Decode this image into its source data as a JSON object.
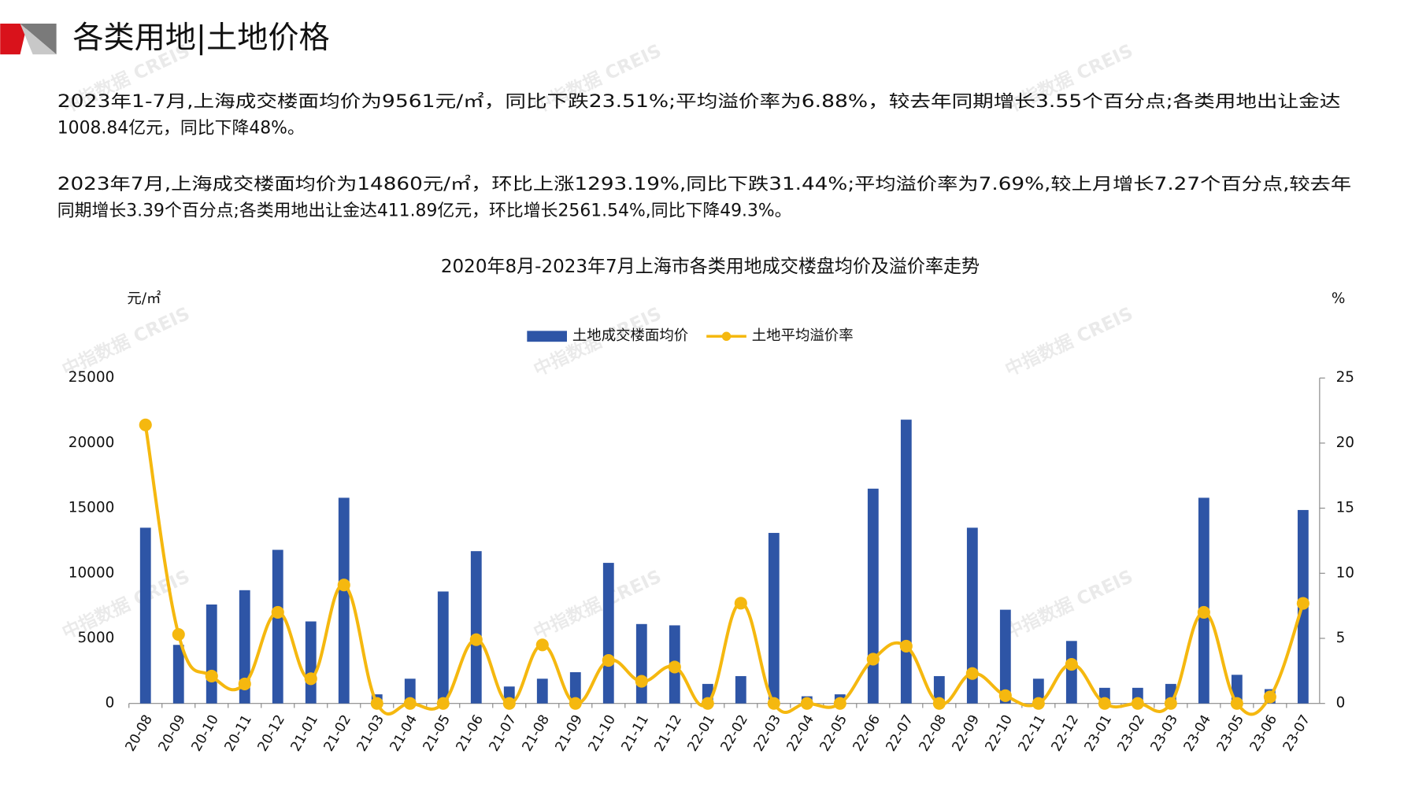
{
  "header": {
    "title": "各类用地|土地价格"
  },
  "paragraphs": [
    [
      "2023年1-7月,上海成交楼面均价为9561元/㎡，同比下跌23.51%;平均溢价率为6.88%，较去年同期增长3.55个百分点;各类用地出让金达",
      "1008.84亿元，同比下降48%。"
    ],
    [
      "2023年7月,上海成交楼面均价为14860元/㎡，环比上涨1293.19%,同比下跌31.44%;平均溢价率为7.69%,较上月增长7.27个百分点,较去年",
      "同期增长3.39个百分点;各类用地出让金达411.89亿元，环比增长2561.54%,同比下降49.3%。"
    ]
  ],
  "watermark": "中指数据 CREIS",
  "chart_data": {
    "type": "bar-line",
    "title": "2020年8月-2023年7月上海市各类用地成交楼盘均价及溢价率走势",
    "y_label": "元/㎡",
    "y2_label": "%",
    "categories": [
      "20-08",
      "20-09",
      "20-10",
      "20-11",
      "20-12",
      "21-01",
      "21-02",
      "21-03",
      "21-04",
      "21-05",
      "21-06",
      "21-07",
      "21-08",
      "21-09",
      "21-10",
      "21-11",
      "21-12",
      "22-01",
      "22-02",
      "22-03",
      "22-04",
      "22-05",
      "22-06",
      "22-07",
      "22-08",
      "22-09",
      "22-10",
      "22-11",
      "22-12",
      "23-01",
      "23-02",
      "23-03",
      "23-04",
      "23-05",
      "23-06",
      "23-07"
    ],
    "series": [
      {
        "name": "土地成交楼面均价",
        "type": "bar",
        "axis": "y",
        "color": "#2e55a6",
        "values": [
          13500,
          4500,
          7600,
          8700,
          11800,
          6300,
          15800,
          700,
          1900,
          8600,
          11700,
          1300,
          1900,
          2400,
          10800,
          6100,
          6000,
          1500,
          2100,
          13100,
          550,
          700,
          16500,
          21800,
          2100,
          13500,
          7200,
          1900,
          4800,
          1200,
          1200,
          1500,
          15800,
          2200,
          1100,
          14860
        ]
      },
      {
        "name": "土地平均溢价率",
        "type": "line",
        "axis": "y2",
        "color": "#f5b80f",
        "values": [
          21.4,
          5.3,
          2.1,
          1.5,
          7.0,
          1.9,
          9.1,
          0,
          0,
          0,
          4.9,
          0,
          4.5,
          0,
          3.3,
          1.7,
          2.8,
          0,
          7.7,
          0,
          0,
          0,
          3.4,
          4.4,
          0,
          2.3,
          0.6,
          0,
          3.0,
          0,
          0,
          0,
          7.0,
          0,
          0.5,
          7.69
        ]
      }
    ],
    "ylim": [
      0,
      25000
    ],
    "yticks": [
      0,
      5000,
      10000,
      15000,
      20000,
      25000
    ],
    "y2lim": [
      0,
      25
    ],
    "y2ticks": [
      0,
      5,
      10,
      15,
      20,
      25
    ]
  }
}
